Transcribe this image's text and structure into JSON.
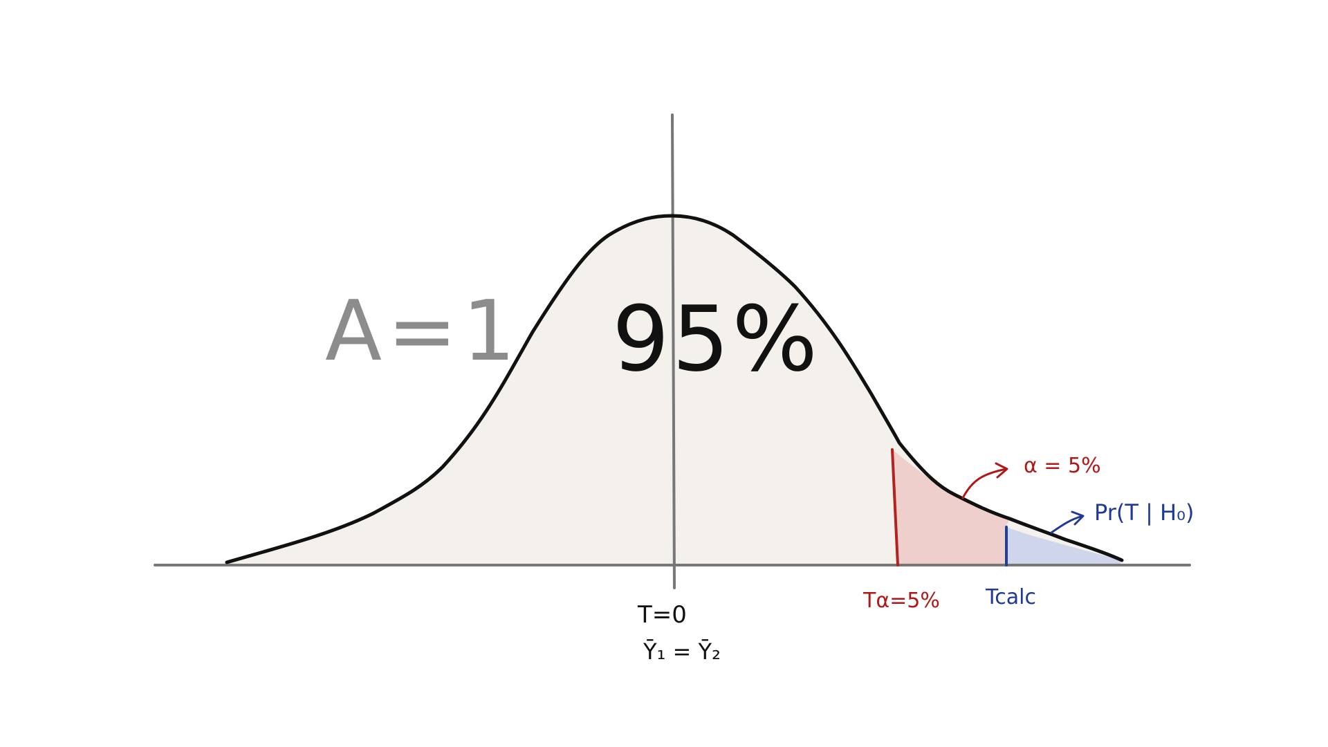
{
  "labels": {
    "area": "A=1",
    "center_pct": "95%",
    "t_zero": "T=0",
    "means_equal": "Ȳ₁ = Ȳ₂",
    "alpha": "α = 5%",
    "p_value": "Pr(T | H₀)",
    "t_alpha": "Tα=5%",
    "t_calc": "Tcalc"
  },
  "colors": {
    "curve": "#111111",
    "axis": "#777777",
    "body_fill": "#f4f1ec",
    "alpha_fill": "#efcfcc",
    "alpha_line": "#b22222",
    "alpha_text": "#b01818",
    "pvalue_fill": "#cfd5ea",
    "pvalue_line": "#1f3f9a",
    "pvalue_text": "#1f3a94",
    "area_text": "#8c8c8c"
  }
}
